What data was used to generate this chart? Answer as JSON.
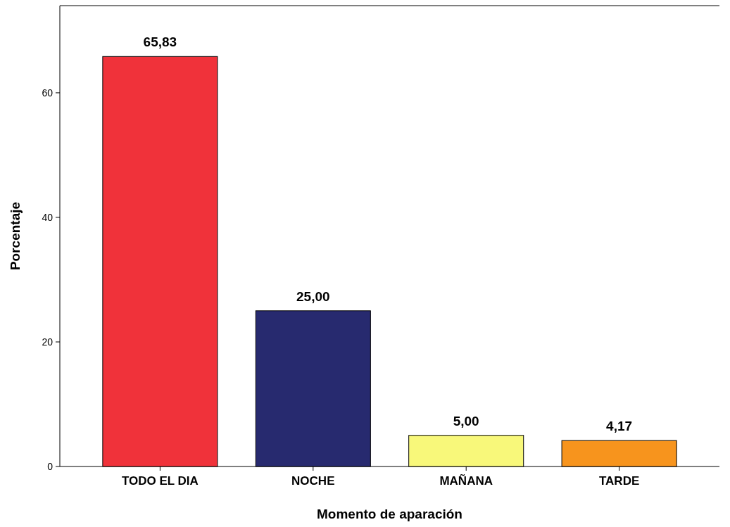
{
  "chart_data": {
    "type": "bar",
    "xlabel": "Momento de aparación",
    "ylabel": "Porcentaje",
    "categories": [
      "TODO EL DIA",
      "NOCHE",
      "MAÑANA",
      "TARDE"
    ],
    "values": [
      65.83,
      25.0,
      5.0,
      4.17
    ],
    "value_labels": [
      "65,83",
      "25,00",
      "5,00",
      "4,17"
    ],
    "colors": [
      "#f0323a",
      "#272a6f",
      "#f8f87a",
      "#f7941d"
    ],
    "ylim": [
      0,
      74
    ],
    "yticks": [
      0,
      20,
      40,
      60
    ],
    "grid": false
  }
}
